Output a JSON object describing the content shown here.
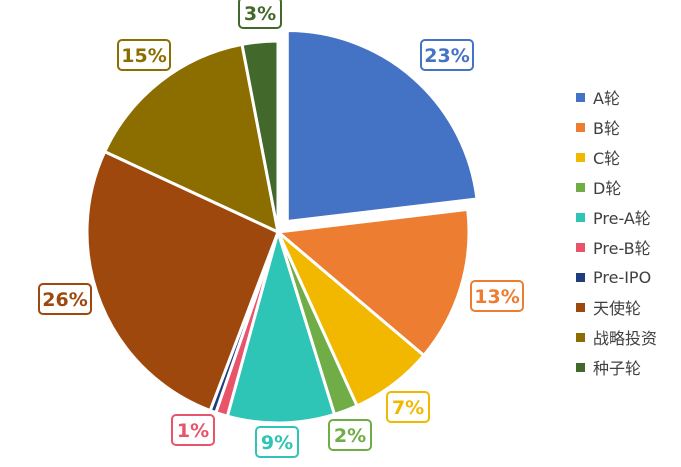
{
  "chart_data": {
    "type": "pie",
    "title": "",
    "legend_position": "right",
    "exploded_slice": "A轮",
    "slices": [
      {
        "label": "A轮",
        "value": 23,
        "display": "23%",
        "color": "#4472C4"
      },
      {
        "label": "B轮",
        "value": 13,
        "display": "13%",
        "color": "#ED7D31"
      },
      {
        "label": "C轮",
        "value": 7,
        "display": "7%",
        "color": "#F2B800"
      },
      {
        "label": "D轮",
        "value": 2,
        "display": "2%",
        "color": "#70AD47"
      },
      {
        "label": "Pre-A轮",
        "value": 9,
        "display": "9%",
        "color": "#2EC4B6"
      },
      {
        "label": "Pre-B轮",
        "value": 1,
        "display": "1%",
        "color": "#E8546A"
      },
      {
        "label": "Pre-IPO",
        "value": 0.5,
        "display": "",
        "color": "#1F3D7A"
      },
      {
        "label": "天使轮",
        "value": 26,
        "display": "26%",
        "color": "#9E480E"
      },
      {
        "label": "战略投资",
        "value": 15,
        "display": "15%",
        "color": "#8B6D00"
      },
      {
        "label": "种子轮",
        "value": 3,
        "display": "3%",
        "color": "#43682B"
      }
    ]
  }
}
